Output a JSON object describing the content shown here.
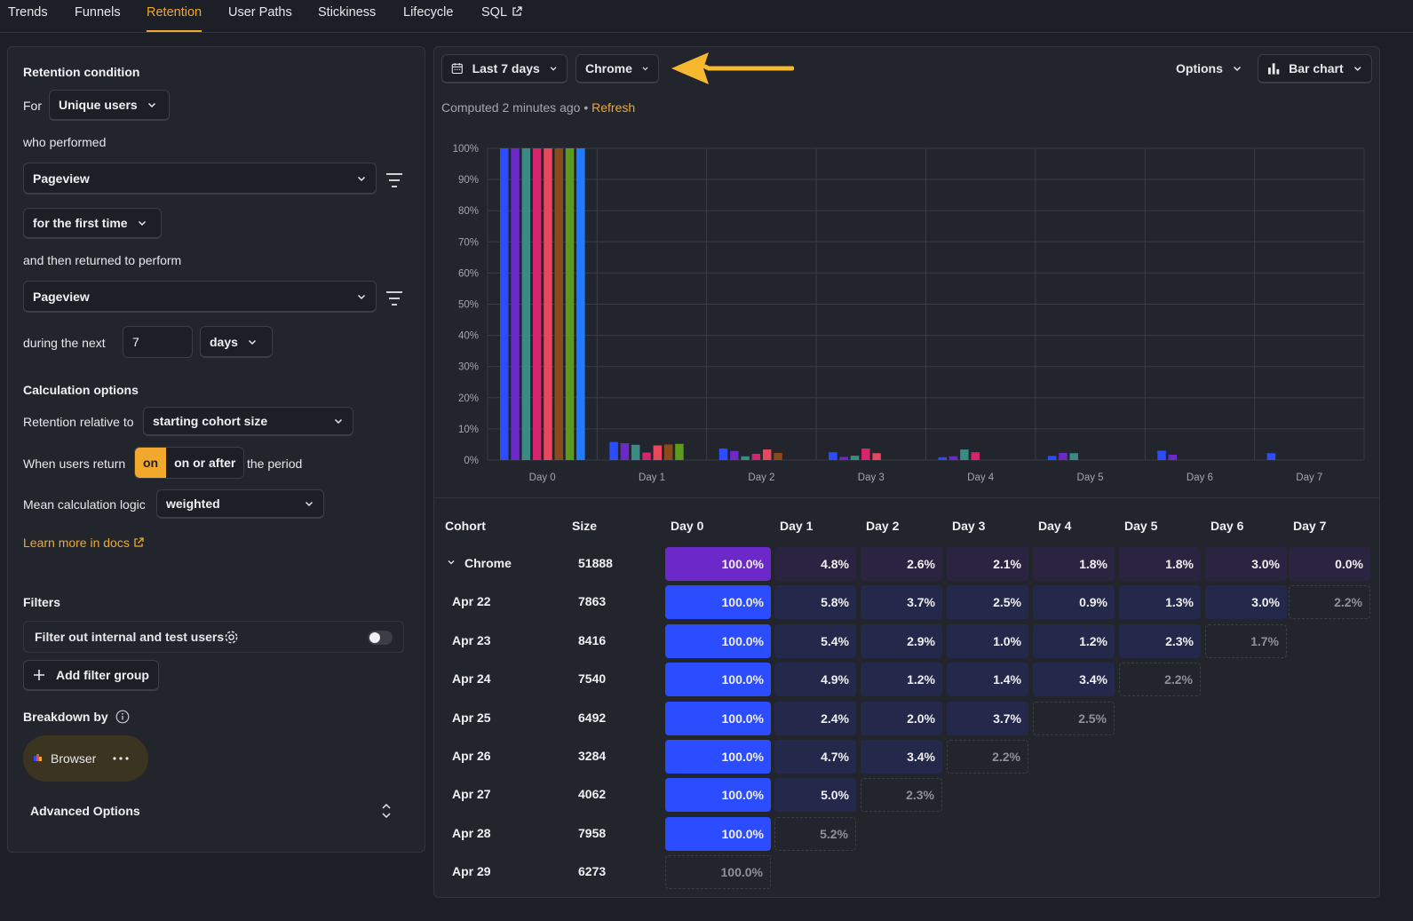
{
  "tabs": [
    "Trends",
    "Funnels",
    "Retention",
    "User Paths",
    "Stickiness",
    "Lifecycle",
    "SQL"
  ],
  "active_tab": "Retention",
  "left": {
    "retention_condition": "Retention condition",
    "for_label": "For",
    "unique_users": "Unique users",
    "who_performed": "who performed",
    "event1": "Pageview",
    "first_time": "for the first time",
    "then_returned": "and then returned to perform",
    "event2": "Pageview",
    "during_next": "during the next",
    "period_value": "7",
    "period_unit": "days",
    "calc_options": "Calculation options",
    "relative_label": "Retention relative to",
    "relative_value": "starting cohort size",
    "when_return_label": "When users return",
    "seg_on": "on",
    "seg_on_or_after": "on or after",
    "the_period": "the period",
    "mean_label": "Mean calculation logic",
    "mean_value": "weighted",
    "learn_more": "Learn more in docs",
    "filters": "Filters",
    "filter_internal": "Filter out internal and test users",
    "add_filter_group": "Add filter group",
    "breakdown_by": "Breakdown by",
    "breakdown_value": "Browser",
    "advanced": "Advanced Options"
  },
  "toolbar": {
    "date_range": "Last 7 days",
    "breakdown_filter": "Chrome",
    "options": "Options",
    "chart_type": "Bar chart"
  },
  "computed": "Computed 2 minutes ago",
  "refresh": "Refresh",
  "chart_data": {
    "type": "bar",
    "categories": [
      "Day 0",
      "Day 1",
      "Day 2",
      "Day 3",
      "Day 4",
      "Day 5",
      "Day 6",
      "Day 7"
    ],
    "yticks": [
      "0%",
      "10%",
      "20%",
      "30%",
      "40%",
      "50%",
      "60%",
      "70%",
      "80%",
      "90%",
      "100%"
    ],
    "ylim": [
      0,
      100
    ],
    "grid": true,
    "series": [
      {
        "color": "#2b4dff",
        "values": [
          100,
          5.8,
          3.7,
          2.5,
          0.9,
          1.3,
          3.0,
          2.2
        ]
      },
      {
        "color": "#6d28c9",
        "values": [
          100,
          5.4,
          2.9,
          1.0,
          1.2,
          2.3,
          1.7,
          null
        ]
      },
      {
        "color": "#3a8a86",
        "values": [
          100,
          4.9,
          1.2,
          1.4,
          3.4,
          2.2,
          null,
          null
        ]
      },
      {
        "color": "#d6246e",
        "values": [
          100,
          2.4,
          2.0,
          3.7,
          2.5,
          null,
          null,
          null
        ]
      },
      {
        "color": "#e8475c",
        "values": [
          100,
          4.7,
          3.4,
          2.2,
          null,
          null,
          null,
          null
        ]
      },
      {
        "color": "#8a4a1c",
        "values": [
          100,
          5.0,
          2.3,
          null,
          null,
          null,
          null,
          null
        ]
      },
      {
        "color": "#5b9a1a",
        "values": [
          100,
          5.2,
          null,
          null,
          null,
          null,
          null,
          null
        ]
      },
      {
        "color": "#1f7bff",
        "values": [
          100,
          null,
          null,
          null,
          null,
          null,
          null,
          null
        ]
      }
    ]
  },
  "table": {
    "headers": [
      "Cohort",
      "Size",
      "Day 0",
      "Day 1",
      "Day 2",
      "Day 3",
      "Day 4",
      "Day 5",
      "Day 6",
      "Day 7"
    ],
    "rows": [
      {
        "cohort": "Chrome",
        "size": "51888",
        "values": [
          "100.0%",
          "4.8%",
          "2.6%",
          "2.1%",
          "1.8%",
          "1.8%",
          "3.0%",
          "0.0%"
        ],
        "dashed": [],
        "summary": true
      },
      {
        "cohort": "Apr 22",
        "size": "7863",
        "values": [
          "100.0%",
          "5.8%",
          "3.7%",
          "2.5%",
          "0.9%",
          "1.3%",
          "3.0%",
          "2.2%"
        ],
        "dashed": [
          7
        ]
      },
      {
        "cohort": "Apr 23",
        "size": "8416",
        "values": [
          "100.0%",
          "5.4%",
          "2.9%",
          "1.0%",
          "1.2%",
          "2.3%",
          "1.7%"
        ],
        "dashed": [
          6
        ]
      },
      {
        "cohort": "Apr 24",
        "size": "7540",
        "values": [
          "100.0%",
          "4.9%",
          "1.2%",
          "1.4%",
          "3.4%",
          "2.2%"
        ],
        "dashed": [
          5
        ]
      },
      {
        "cohort": "Apr 25",
        "size": "6492",
        "values": [
          "100.0%",
          "2.4%",
          "2.0%",
          "3.7%",
          "2.5%"
        ],
        "dashed": [
          4
        ]
      },
      {
        "cohort": "Apr 26",
        "size": "3284",
        "values": [
          "100.0%",
          "4.7%",
          "3.4%",
          "2.2%"
        ],
        "dashed": [
          3
        ]
      },
      {
        "cohort": "Apr 27",
        "size": "4062",
        "values": [
          "100.0%",
          "5.0%",
          "2.3%"
        ],
        "dashed": [
          2
        ]
      },
      {
        "cohort": "Apr 28",
        "size": "7958",
        "values": [
          "100.0%",
          "5.2%"
        ],
        "dashed": [
          1
        ]
      },
      {
        "cohort": "Apr 29",
        "size": "6273",
        "values": [
          "100.0%"
        ],
        "dashed": [
          0
        ]
      }
    ]
  },
  "colors": {
    "accent": "#f1a82c",
    "day0_cell": "#2b4dff",
    "summary_day0_cell": "#6d28c9",
    "cell_dark": "#24284a",
    "summary_cell": "#2a2440"
  }
}
